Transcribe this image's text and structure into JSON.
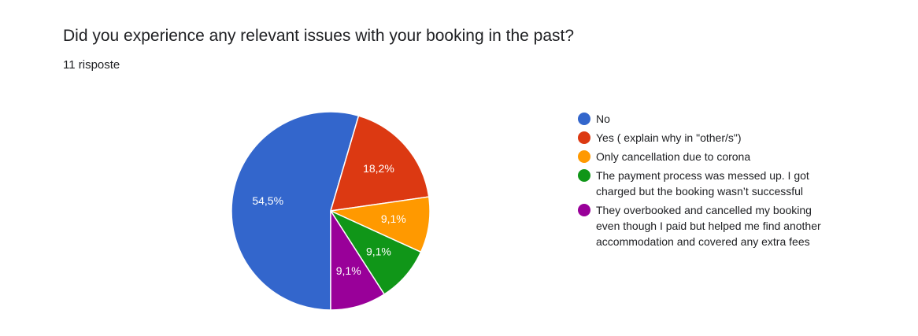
{
  "question": {
    "title": "Did you experience any relevant issues with your booking in the past?",
    "response_count": "11 risposte"
  },
  "colors": {
    "background": "#ffffff",
    "text": "#202124",
    "slice_label": "#ffffff"
  },
  "chart_data": {
    "type": "pie",
    "total_responses": 11,
    "start_angle_deg": 90,
    "direction": "clockwise",
    "legend_position": "right",
    "slices": [
      {
        "label": "No",
        "count": 6,
        "percent_label": "54,5%",
        "color": "#3366cc"
      },
      {
        "label": "Yes ( explain why in \"other/s\")",
        "count": 2,
        "percent_label": "18,2%",
        "color": "#dc3912"
      },
      {
        "label": "Only cancellation due to corona",
        "count": 1,
        "percent_label": "9,1%",
        "color": "#ff9900"
      },
      {
        "label": "The payment process was messed up. I got charged but the booking wasn’t successful",
        "count": 1,
        "percent_label": "9,1%",
        "color": "#109618"
      },
      {
        "label": "They overbooked and cancelled my booking even though I paid but helped me find another accommodation and covered any extra fees",
        "count": 1,
        "percent_label": "9,1%",
        "color": "#990099"
      }
    ]
  }
}
